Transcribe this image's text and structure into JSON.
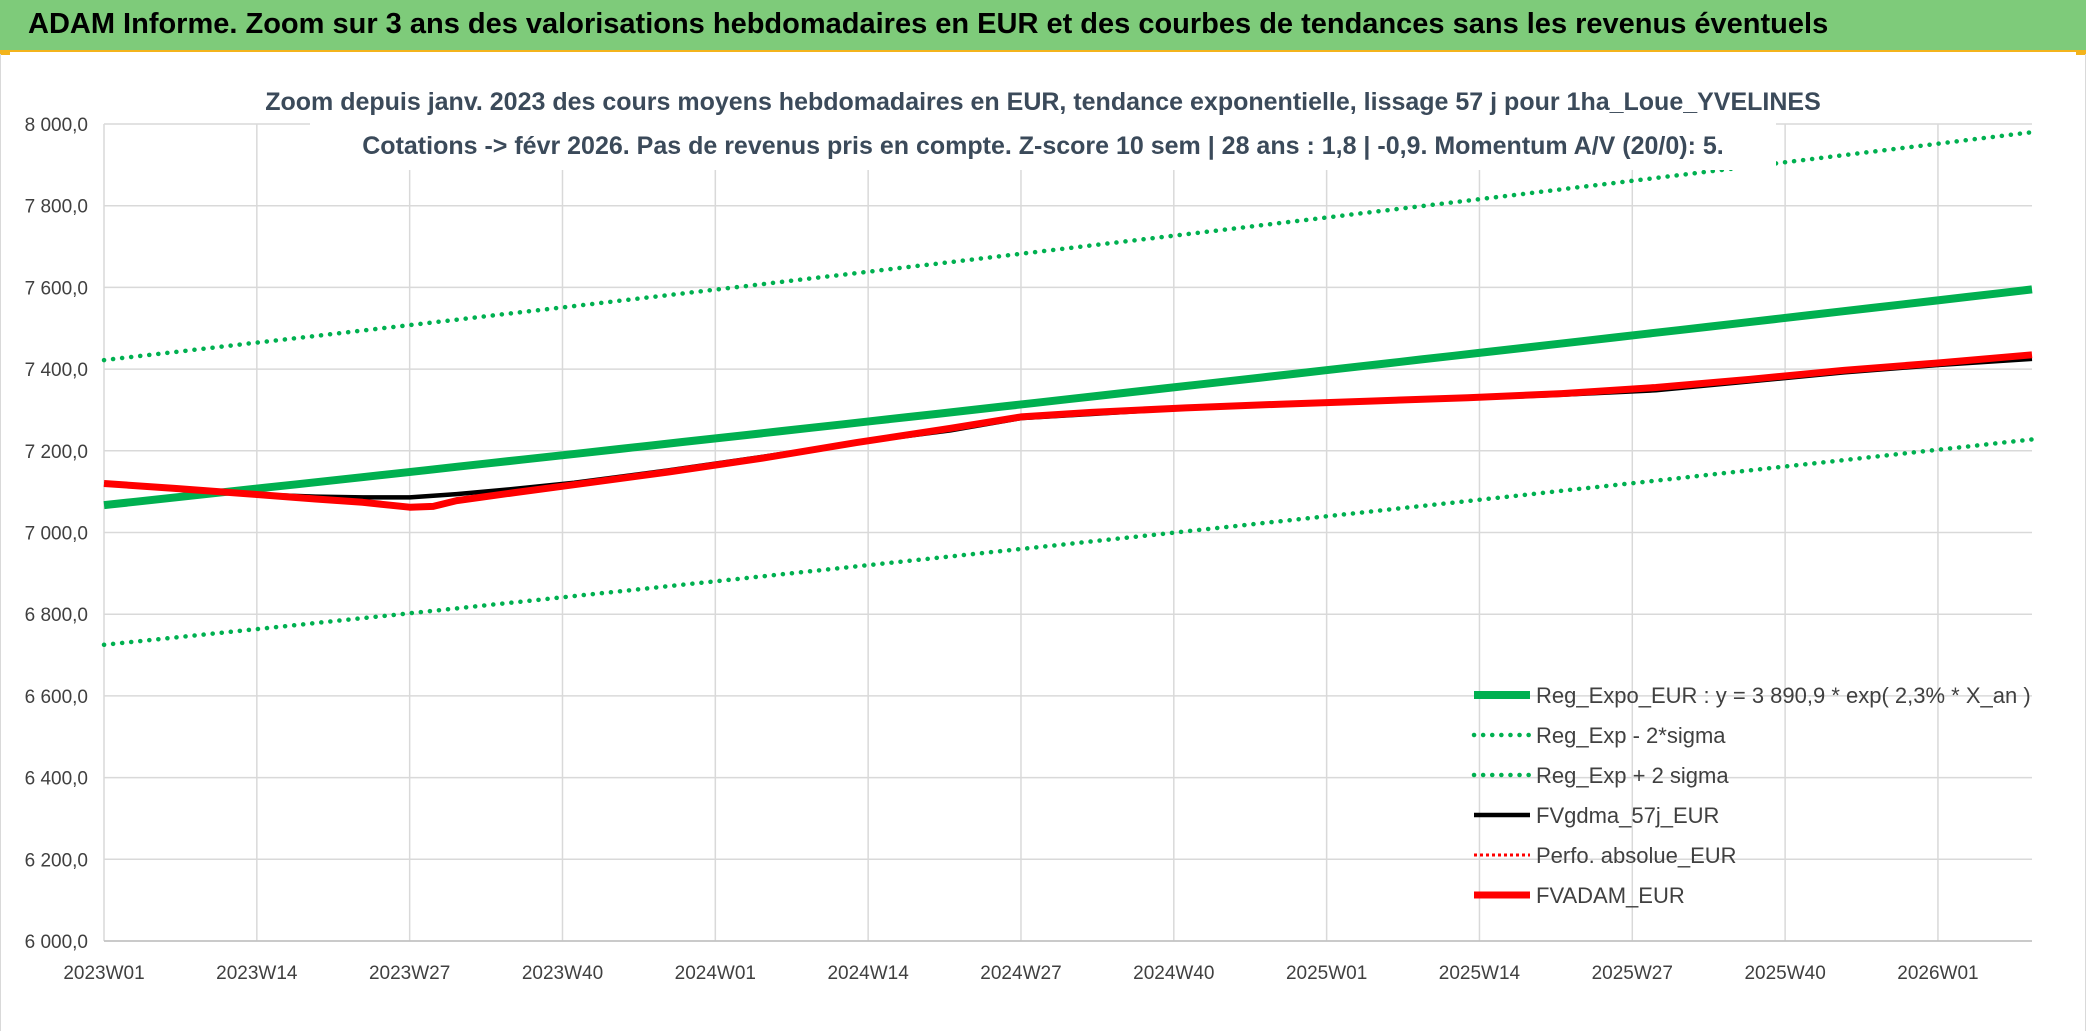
{
  "banner": {
    "title": "ADAM Informe. Zoom sur 3 ans des valorisations hebdomadaires en EUR et des courbes de tendances sans les revenus éventuels"
  },
  "colors": {
    "banner_bg": "#7ecb7a",
    "banner_accent": "#f3b41c",
    "reg_green": "#00b050",
    "black": "#000000",
    "red": "#ff0000",
    "grid": "#d9d9d9"
  },
  "chart_data": {
    "type": "line",
    "subtitle_lines": [
      "Zoom depuis janv. 2023 des cours moyens hebdomadaires en EUR, tendance exponentielle, lissage 57 j pour 1ha_Loue_YVELINES",
      "Cotations -> févr 2026. Pas de revenus pris en compte. Z-score 10 sem | 28 ans : 1,8 | -0,9. Momentum A/V (20/0): 5."
    ],
    "x_tick_labels": [
      "2023W01",
      "2023W14",
      "2023W27",
      "2023W40",
      "2024W01",
      "2024W14",
      "2024W27",
      "2024W40",
      "2025W01",
      "2025W14",
      "2025W27",
      "2025W40",
      "2026W01"
    ],
    "x_range_weeks": [
      0,
      164
    ],
    "y_ticks": [
      6000,
      6200,
      6400,
      6600,
      6800,
      7000,
      7200,
      7400,
      7600,
      7800,
      8000
    ],
    "y_tick_labels": [
      "6 000,0",
      "6 200,0",
      "6 400,0",
      "6 600,0",
      "6 800,0",
      "7 000,0",
      "7 200,0",
      "7 400,0",
      "7 600,0",
      "7 800,0",
      "8 000,0"
    ],
    "ylim": [
      6000,
      8000
    ],
    "grid": true,
    "legend_position": "bottom-right",
    "series": [
      {
        "name": "Reg_Expo_EUR : y = 3 890,9 * exp( 2,3% *  X_an )",
        "style": "solid-thick",
        "color": "#00b050",
        "x": [
          0,
          164
        ],
        "y": [
          7067,
          7595
        ],
        "curve": "exponential"
      },
      {
        "name": "Reg_Exp - 2*sigma",
        "style": "dotted",
        "color": "#00b050",
        "x": [
          0,
          164
        ],
        "y": [
          6725,
          7228
        ],
        "curve": "exponential"
      },
      {
        "name": "Reg_Exp + 2 sigma",
        "style": "dotted",
        "color": "#00b050",
        "x": [
          0,
          164
        ],
        "y": [
          7422,
          7980
        ],
        "curve": "exponential"
      },
      {
        "name": "FVgdma_57j_EUR",
        "style": "solid",
        "color": "#000000",
        "x": [
          0,
          6,
          13,
          18,
          22,
          26,
          30,
          35,
          40,
          48,
          56,
          64,
          72,
          78,
          84,
          92,
          100,
          108,
          116,
          124,
          132,
          140,
          148,
          156,
          164
        ],
        "y": [
          7118,
          7108,
          7093,
          7088,
          7086,
          7086,
          7094,
          7107,
          7122,
          7152,
          7185,
          7220,
          7250,
          7280,
          7290,
          7304,
          7313,
          7320,
          7328,
          7337,
          7348,
          7370,
          7392,
          7410,
          7425
        ]
      },
      {
        "name": "Perfo. absolue_EUR",
        "style": "dotted-thin",
        "color": "#ff0000",
        "x": [],
        "y": []
      },
      {
        "name": "FVADAM_EUR",
        "style": "solid-thick",
        "color": "#ff0000",
        "x": [
          0,
          6,
          13,
          18,
          22,
          26,
          28,
          30,
          35,
          40,
          48,
          56,
          64,
          72,
          78,
          84,
          92,
          100,
          108,
          116,
          124,
          132,
          140,
          148,
          156,
          164
        ],
        "y": [
          7120,
          7108,
          7093,
          7082,
          7074,
          7062,
          7064,
          7078,
          7098,
          7117,
          7148,
          7182,
          7220,
          7255,
          7283,
          7294,
          7305,
          7314,
          7322,
          7330,
          7340,
          7355,
          7375,
          7397,
          7415,
          7435
        ]
      }
    ]
  }
}
